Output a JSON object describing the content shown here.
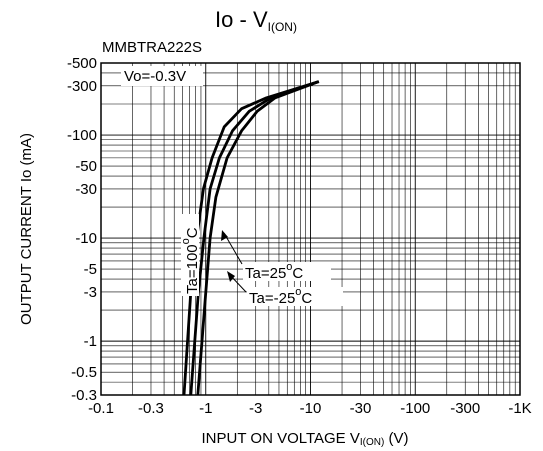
{
  "chart_data": {
    "type": "line",
    "title_main": "Io - V",
    "title_sub": "I(ON)",
    "device": "MMBTRA222S",
    "condition": "Vo=-0.3V",
    "xlabel_main": "INPUT ON VOLTAGE V",
    "xlabel_sub": "I(ON)",
    "xlabel_unit": "(V)",
    "ylabel": "OUTPUT CURRENT Io (mA)",
    "x_scale": "log",
    "y_scale": "log",
    "xlim": [
      -0.1,
      -1000
    ],
    "ylim": [
      -0.3,
      -500
    ],
    "grid": true,
    "x_ticks": [
      {
        "value": -0.1,
        "label": "-0.1"
      },
      {
        "value": -0.3,
        "label": "-0.3"
      },
      {
        "value": -1,
        "label": "-1"
      },
      {
        "value": -3,
        "label": "-3"
      },
      {
        "value": -10,
        "label": "-10"
      },
      {
        "value": -30,
        "label": "-30"
      },
      {
        "value": -100,
        "label": "-100"
      },
      {
        "value": -300,
        "label": "-300"
      },
      {
        "value": -1000,
        "label": "-1K"
      }
    ],
    "y_ticks": [
      {
        "value": -500,
        "label": "-500"
      },
      {
        "value": -300,
        "label": "-300"
      },
      {
        "value": -100,
        "label": "-100"
      },
      {
        "value": -50,
        "label": "-50"
      },
      {
        "value": -30,
        "label": "-30"
      },
      {
        "value": -10,
        "label": "-10"
      },
      {
        "value": -5,
        "label": "-5"
      },
      {
        "value": -3,
        "label": "-3"
      },
      {
        "value": -1,
        "label": "-1"
      },
      {
        "value": -0.5,
        "label": "-0.5"
      },
      {
        "value": -0.3,
        "label": "-0.3"
      }
    ],
    "series": [
      {
        "name": "Ta=100°C",
        "label_base": "Ta=100",
        "points": [
          [
            -0.62,
            -0.3
          ],
          [
            -0.72,
            -3
          ],
          [
            -0.82,
            -10
          ],
          [
            -0.95,
            -30
          ],
          [
            -1.15,
            -60
          ],
          [
            -1.5,
            -120
          ],
          [
            -2.2,
            -180
          ],
          [
            -3.8,
            -230
          ],
          [
            -12,
            -330
          ]
        ]
      },
      {
        "name": "Ta=25°C",
        "label_base": "Ta=25",
        "points": [
          [
            -0.72,
            -0.3
          ],
          [
            -0.85,
            -3
          ],
          [
            -0.96,
            -10
          ],
          [
            -1.1,
            -30
          ],
          [
            -1.35,
            -60
          ],
          [
            -1.8,
            -110
          ],
          [
            -2.6,
            -170
          ],
          [
            -4.2,
            -230
          ],
          [
            -12,
            -330
          ]
        ]
      },
      {
        "name": "Ta=-25°C",
        "label_base": "Ta=-25",
        "points": [
          [
            -0.84,
            -0.3
          ],
          [
            -1.0,
            -3
          ],
          [
            -1.1,
            -10
          ],
          [
            -1.25,
            -25
          ],
          [
            -1.6,
            -60
          ],
          [
            -2.2,
            -110
          ],
          [
            -3.1,
            -170
          ],
          [
            -4.6,
            -230
          ],
          [
            -12,
            -330
          ]
        ]
      }
    ]
  }
}
